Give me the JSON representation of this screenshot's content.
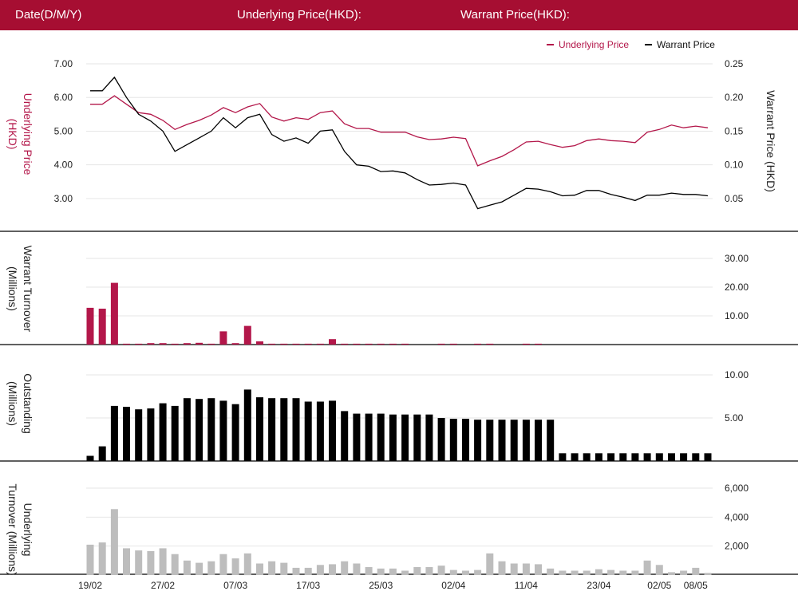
{
  "header": {
    "date_label": "Date(D/M/Y)",
    "underlying_label": "Underlying Price(HKD):",
    "warrant_label": "Warrant Price(HKD):"
  },
  "colors": {
    "header_bg": "#a60e32",
    "underlying": "#b3174a",
    "warrant": "#000000",
    "outstanding": "#000000",
    "underlying_turnover": "#bdbdbd",
    "grid": "#e6e6e6",
    "divider": "#000000"
  },
  "chart_data": {
    "x_tick_labels": [
      {
        "index": 0,
        "label": "19/02"
      },
      {
        "index": 6,
        "label": "27/02"
      },
      {
        "index": 12,
        "label": "07/03"
      },
      {
        "index": 18,
        "label": "17/03"
      },
      {
        "index": 24,
        "label": "25/03"
      },
      {
        "index": 30,
        "label": "02/04"
      },
      {
        "index": 36,
        "label": "11/04"
      },
      {
        "index": 42,
        "label": "23/04"
      },
      {
        "index": 47,
        "label": "02/05"
      },
      {
        "index": 50,
        "label": "08/05"
      }
    ],
    "price_panel": {
      "type": "line",
      "legend": [
        {
          "name": "Underlying Price",
          "color": "#b3174a"
        },
        {
          "name": "Warrant Price",
          "color": "#000000"
        }
      ],
      "legend_position": "top-right",
      "left_axis": {
        "label": "Underlying Price (HKD)",
        "ticks": [
          "7.00",
          "6.00",
          "5.00",
          "4.00",
          "3.00"
        ],
        "ylim": [
          2.5,
          7.0
        ]
      },
      "right_axis": {
        "label": "Warrant  Price (HKD)",
        "ticks": [
          "0.25",
          "0.20",
          "0.15",
          "0.10",
          "0.05"
        ],
        "ylim": [
          0.025,
          0.25
        ]
      },
      "series": [
        {
          "name": "Underlying Price",
          "axis": "left",
          "values": [
            5.8,
            5.8,
            6.05,
            5.8,
            5.55,
            5.5,
            5.32,
            5.05,
            5.2,
            5.32,
            5.48,
            5.7,
            5.55,
            5.72,
            5.82,
            5.42,
            5.3,
            5.4,
            5.35,
            5.55,
            5.6,
            5.22,
            5.08,
            5.08,
            4.97,
            4.97,
            4.97,
            4.83,
            4.75,
            4.77,
            4.82,
            4.78,
            3.97,
            4.12,
            4.25,
            4.45,
            4.68,
            4.7,
            4.6,
            4.52,
            4.57,
            4.72,
            4.77,
            4.72,
            4.7,
            4.66,
            4.97,
            5.05,
            5.18,
            5.1,
            5.15,
            5.1
          ]
        },
        {
          "name": "Warrant Price",
          "axis": "right",
          "values": [
            0.21,
            0.21,
            0.23,
            0.2,
            0.175,
            0.165,
            0.15,
            0.12,
            0.13,
            0.14,
            0.15,
            0.17,
            0.155,
            0.17,
            0.175,
            0.145,
            0.135,
            0.14,
            0.132,
            0.15,
            0.152,
            0.12,
            0.1,
            0.098,
            0.09,
            0.091,
            0.088,
            0.078,
            0.07,
            0.071,
            0.073,
            0.07,
            0.035,
            0.04,
            0.045,
            0.055,
            0.065,
            0.064,
            0.06,
            0.054,
            0.055,
            0.062,
            0.062,
            0.056,
            0.052,
            0.047,
            0.055,
            0.055,
            0.058,
            0.056,
            0.056,
            0.054
          ]
        }
      ]
    },
    "warrant_turnover_panel": {
      "type": "bar",
      "label": "Warrant  Turnover (Millions)",
      "ticks": [
        "30.00",
        "20.00",
        "10.00"
      ],
      "ylim": [
        0,
        30
      ],
      "values": [
        12.8,
        12.5,
        21.5,
        0.3,
        0.3,
        0.5,
        0.5,
        0.3,
        0.5,
        0.6,
        0.3,
        4.6,
        0.5,
        6.5,
        1.1,
        0.3,
        0.3,
        0.3,
        0.3,
        0.3,
        1.9,
        0.3,
        0.3,
        0.3,
        0.3,
        0.3,
        0.3,
        0,
        0,
        0.3,
        0.3,
        0,
        0.3,
        0.3,
        0,
        0,
        0.3,
        0.3,
        0,
        0,
        0,
        0,
        0,
        0,
        0,
        0,
        0,
        0,
        0,
        0,
        0,
        0
      ]
    },
    "outstanding_panel": {
      "type": "bar",
      "label": "Outstanding (Millions)",
      "ticks": [
        "10.00",
        "5.00"
      ],
      "ylim": [
        0,
        10
      ],
      "values": [
        0.6,
        1.7,
        6.4,
        6.3,
        6.0,
        6.1,
        6.7,
        6.4,
        7.3,
        7.2,
        7.3,
        7.0,
        6.6,
        8.3,
        7.4,
        7.3,
        7.3,
        7.3,
        6.9,
        6.9,
        7.0,
        5.8,
        5.5,
        5.5,
        5.5,
        5.4,
        5.4,
        5.4,
        5.4,
        5.0,
        4.9,
        4.9,
        4.8,
        4.8,
        4.8,
        4.8,
        4.8,
        4.8,
        4.8,
        0.9,
        0.9,
        0.9,
        0.9,
        0.9,
        0.9,
        0.9,
        0.9,
        0.9,
        0.9,
        0.9,
        0.9,
        0.9
      ]
    },
    "underlying_turnover_panel": {
      "type": "bar",
      "label": "Underlying Turnover (Millions)",
      "ticks": [
        "6,000",
        "4,000",
        "2,000"
      ],
      "ylim": [
        0,
        6000
      ],
      "values": [
        2100,
        2250,
        4550,
        1850,
        1700,
        1650,
        1850,
        1450,
        1000,
        850,
        950,
        1450,
        1150,
        1500,
        800,
        950,
        850,
        500,
        500,
        700,
        750,
        950,
        800,
        550,
        450,
        450,
        300,
        550,
        550,
        650,
        350,
        300,
        350,
        1500,
        950,
        800,
        800,
        750,
        450,
        300,
        300,
        300,
        400,
        350,
        300,
        300,
        1000,
        700,
        200,
        300,
        500,
        150
      ]
    }
  }
}
